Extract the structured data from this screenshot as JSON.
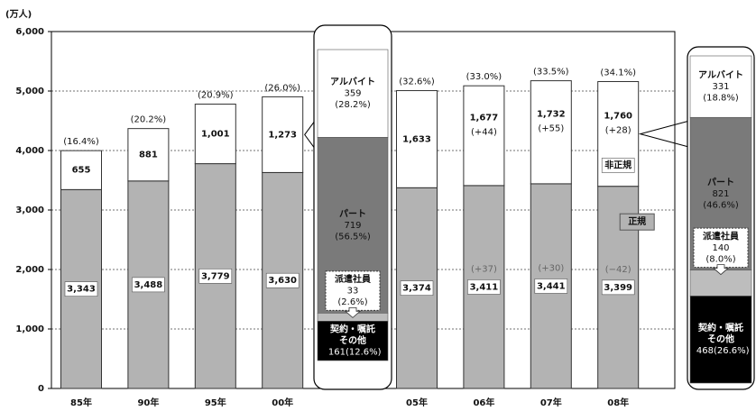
{
  "chart_data": {
    "type": "bar",
    "stacked": true,
    "y_unit": "(万人)",
    "categories": [
      "85年",
      "90年",
      "95年",
      "00年",
      null,
      "05年",
      "06年",
      "07年",
      "08年"
    ],
    "ylim": [
      0,
      6000
    ],
    "yticks": [
      0,
      {
        "value": 1000,
        "label": "1,000"
      },
      {
        "value": 2000,
        "label": "2,000"
      },
      {
        "value": 3000,
        "label": "3,000"
      },
      {
        "value": 4000,
        "label": "4,000"
      },
      {
        "value": 5000,
        "label": "5,000"
      },
      {
        "value": 6000,
        "label": "6,000"
      }
    ],
    "grid": true,
    "series": [
      {
        "name": "正規",
        "color": "#b3b3b3",
        "values": [
          3343,
          3488,
          3779,
          3630,
          null,
          3374,
          3411,
          3441,
          3399
        ],
        "value_labels": [
          "3,343",
          "3,488",
          "3,779",
          "3,630",
          null,
          "3,374",
          "3,411",
          "3,441",
          "3,399"
        ],
        "changes": [
          null,
          null,
          null,
          null,
          null,
          null,
          37,
          30,
          -42
        ],
        "change_labels": [
          null,
          null,
          null,
          null,
          null,
          null,
          "(+37)",
          "(+30)",
          "(−42)"
        ]
      },
      {
        "name": "非正規",
        "color": "#ffffff",
        "values": [
          655,
          881,
          1001,
          1273,
          null,
          1633,
          1677,
          1732,
          1760
        ],
        "value_labels": [
          "655",
          "881",
          "1,001",
          "1,273",
          null,
          "1,633",
          "1,677",
          "1,732",
          "1,760"
        ],
        "changes": [
          null,
          null,
          null,
          null,
          null,
          null,
          44,
          55,
          28
        ],
        "change_labels": [
          null,
          null,
          null,
          null,
          null,
          null,
          "(+44)",
          "(+55)",
          "(+28)"
        ]
      }
    ],
    "shares": [
      16.4,
      20.2,
      20.9,
      26.0,
      null,
      32.6,
      33.0,
      33.5,
      34.1
    ],
    "share_labels": [
      "(16.4%)",
      "(20.2%)",
      "(20.9%)",
      "(26.0%)",
      null,
      "(32.6%)",
      "(33.0%)",
      "(33.5%)",
      "(34.1%)"
    ],
    "breakdowns": [
      {
        "items": [
          {
            "name_lines": [
              "アルバイト"
            ],
            "value": 359,
            "share": 28.2,
            "share_label": "(28.2%)",
            "color": "#ffffff"
          },
          {
            "name_lines": [
              "パート"
            ],
            "value": 719,
            "share": 56.5,
            "share_label": "(56.5%)",
            "color": "#7a7a7a"
          },
          {
            "name_lines": [
              "派遣社員"
            ],
            "value": 33,
            "share": 2.6,
            "share_label": "(2.6%)",
            "color": "#bdbdbd"
          },
          {
            "name_lines": [
              "契約・嘱託",
              "その他"
            ],
            "value": 161,
            "share": 12.6,
            "share_label": "(12.6%)",
            "color": "#000000"
          }
        ]
      },
      {
        "items": [
          {
            "name_lines": [
              "アルバイト"
            ],
            "value": 331,
            "share": 18.8,
            "share_label": "(18.8%)",
            "color": "#ffffff"
          },
          {
            "name_lines": [
              "パート"
            ],
            "value": 821,
            "share": 46.6,
            "share_label": "(46.6%)",
            "color": "#7a7a7a"
          },
          {
            "name_lines": [
              "派遣社員"
            ],
            "value": 140,
            "share": 8.0,
            "share_label": "(8.0%)",
            "color": "#bdbdbd"
          },
          {
            "name_lines": [
              "契約・嘱託",
              "その他"
            ],
            "value": 468,
            "share": 26.6,
            "share_label": "(26.6%)",
            "color": "#000000"
          }
        ]
      }
    ]
  }
}
